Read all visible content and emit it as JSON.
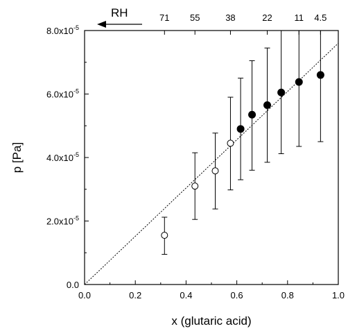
{
  "chart_data": {
    "type": "scatter",
    "xlabel": "x (glutaric acid)",
    "ylabel": "p [Pa]",
    "xlim": [
      0.0,
      1.0
    ],
    "ylim": [
      0.0,
      8e-05
    ],
    "x_ticks": [
      "0.0",
      "0.2",
      "0.4",
      "0.6",
      "0.8",
      "1.0"
    ],
    "y_ticks": [
      {
        "mantissa": "0.0",
        "exp": ""
      },
      {
        "mantissa": "2.0x10",
        "exp": "-5"
      },
      {
        "mantissa": "4.0x10",
        "exp": "-5"
      },
      {
        "mantissa": "6.0x10",
        "exp": "-5"
      },
      {
        "mantissa": "8.0x10",
        "exp": "-5"
      }
    ],
    "top_axis": {
      "label": "RH",
      "ticks": [
        {
          "label": "71",
          "x": 0.315
        },
        {
          "label": "55",
          "x": 0.435
        },
        {
          "label": "38",
          "x": 0.575
        },
        {
          "label": "22",
          "x": 0.72
        },
        {
          "label": "11",
          "x": 0.845
        },
        {
          "label": "4.5",
          "x": 0.93
        }
      ]
    },
    "series": [
      {
        "marker": "open-circle",
        "points": [
          {
            "x": 0.315,
            "y": 1.55e-05,
            "ylo": 9.5e-06,
            "yhi": 2.12e-05
          },
          {
            "x": 0.435,
            "y": 3.1e-05,
            "ylo": 2.05e-05,
            "yhi": 4.15e-05
          },
          {
            "x": 0.515,
            "y": 3.58e-05,
            "ylo": 2.38e-05,
            "yhi": 4.77e-05
          },
          {
            "x": 0.575,
            "y": 4.45e-05,
            "ylo": 2.98e-05,
            "yhi": 5.9e-05
          }
        ]
      },
      {
        "marker": "filled-circle",
        "points": [
          {
            "x": 0.615,
            "y": 4.9e-05,
            "ylo": 3.3e-05,
            "yhi": 6.5e-05
          },
          {
            "x": 0.66,
            "y": 5.35e-05,
            "ylo": 3.6e-05,
            "yhi": 7.05e-05
          },
          {
            "x": 0.72,
            "y": 5.65e-05,
            "ylo": 3.85e-05,
            "yhi": 7.45e-05
          },
          {
            "x": 0.775,
            "y": 6.05e-05,
            "ylo": 4.12e-05,
            "yhi": 8e-05
          },
          {
            "x": 0.845,
            "y": 6.38e-05,
            "ylo": 4.35e-05,
            "yhi": 8e-05
          },
          {
            "x": 0.93,
            "y": 6.6e-05,
            "ylo": 4.5e-05,
            "yhi": 8e-05
          }
        ]
      }
    ],
    "fit_line": {
      "style": "dotted",
      "x": [
        0.0,
        1.0
      ],
      "y": [
        0.0,
        7.6e-05
      ]
    },
    "grid": false,
    "legend": "none"
  }
}
